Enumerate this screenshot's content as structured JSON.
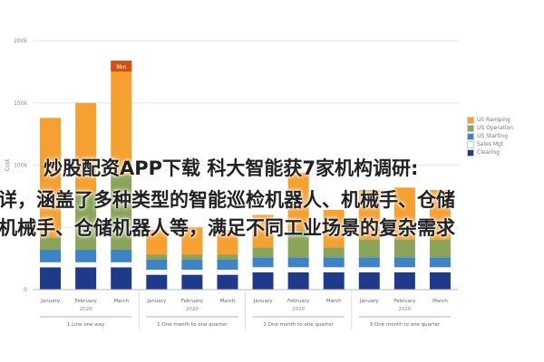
{
  "overlay": {
    "line1": "炒股配资APP下载 科大智能获7家机构调研:",
    "line2": "详，涵盖了多种类型的智能巡检机器人、机械手、仓储",
    "line3": "机械手、仓储机器人等，满足不同工业场景的复杂需求"
  },
  "chart_data": {
    "type": "bar",
    "stacked": true,
    "ylabel": "Cost",
    "ylim": [
      0,
      200
    ],
    "yticks": [
      0,
      50,
      100,
      150,
      200
    ],
    "ytick_labels": [
      "0",
      "50k",
      "100k",
      "150k",
      "200k"
    ],
    "groups": [
      {
        "label": "1.Line one way",
        "months": [
          "January",
          "February",
          "March"
        ],
        "year": "2020"
      },
      {
        "label": "1.One month to one quarter",
        "months": [
          "January",
          "February",
          "March"
        ],
        "year": "2020"
      },
      {
        "label": "2.One month to one quarter",
        "months": [
          "January",
          "February",
          "March"
        ],
        "year": "2020"
      },
      {
        "label": "3.One month to one quarter",
        "months": [
          "January",
          "February",
          "March"
        ],
        "year": "2020"
      }
    ],
    "series": [
      {
        "name": "Clearing",
        "color": "#1f3a8a",
        "values": [
          18,
          18,
          18,
          12,
          12,
          12,
          14,
          14,
          14,
          14,
          14,
          14
        ]
      },
      {
        "name": "Sales Mgt",
        "color": "#ffffff",
        "values": [
          4,
          4,
          4,
          4,
          4,
          4,
          4,
          4,
          4,
          4,
          4,
          4
        ]
      },
      {
        "name": "US Starting",
        "color": "#3f83c7",
        "values": [
          10,
          10,
          10,
          8,
          8,
          8,
          8,
          8,
          8,
          8,
          8,
          8
        ]
      },
      {
        "name": "US Operation",
        "color": "#8aa55a",
        "values": [
          10,
          44,
          60,
          4,
          4,
          4,
          8,
          22,
          8,
          14,
          14,
          14
        ]
      },
      {
        "name": "US Ramping",
        "color": "#f5a030",
        "values": [
          96,
          74,
          92,
          20,
          22,
          20,
          26,
          46,
          30,
          40,
          42,
          40
        ]
      }
    ],
    "bar_labels": [
      "",
      "",
      "",
      "",
      "",
      "",
      "",
      "",
      "",
      "",
      "",
      ""
    ],
    "highlight_label": {
      "index": 2,
      "text": "9bn"
    },
    "legend": [
      "Clearing",
      "Sales Mgt",
      "US Starting",
      "US Operation",
      "US Ramping"
    ]
  }
}
